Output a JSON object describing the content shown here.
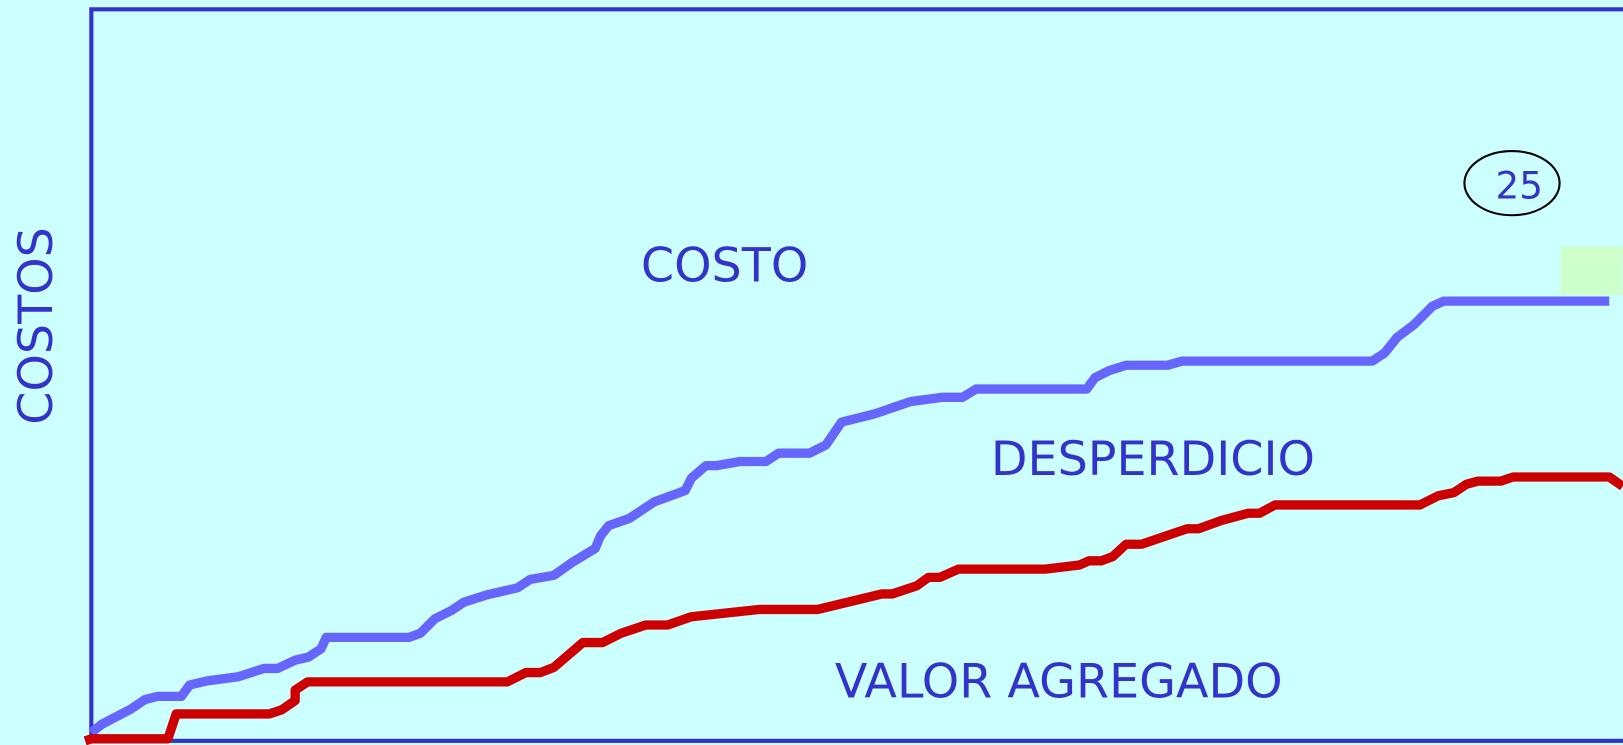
{
  "y_axis_label": "COSTOS",
  "labels": {
    "top": "COSTO",
    "middle": "DESPERDICIO",
    "bottom": "VALOR AGREGADO"
  },
  "slide_number": "25"
}
